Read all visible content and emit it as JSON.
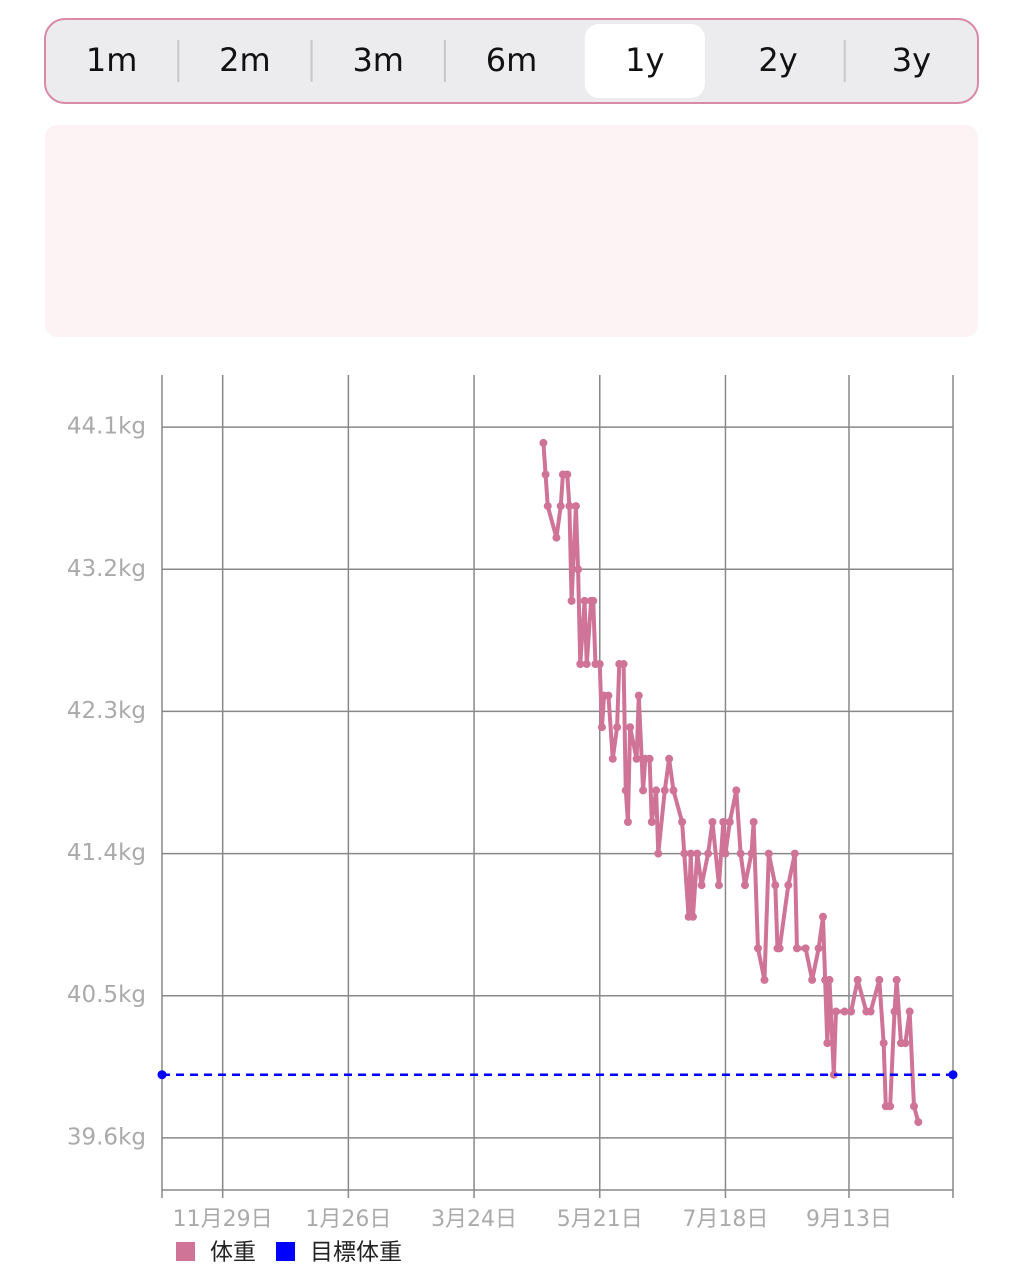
{
  "tabs": {
    "options": [
      "1m",
      "2m",
      "3m",
      "6m",
      "1y",
      "2y",
      "3y"
    ],
    "selected": 4
  },
  "chart_data": {
    "type": "line",
    "xlim": [
      -28,
      337
    ],
    "xticks": [
      {
        "value": 0,
        "label": "11月29日"
      },
      {
        "value": 58,
        "label": "1月26日"
      },
      {
        "value": 116,
        "label": "3月24日"
      },
      {
        "value": 174,
        "label": "5月21日"
      },
      {
        "value": 232,
        "label": "7月18日"
      },
      {
        "value": 289,
        "label": "9月13日"
      }
    ],
    "ylim": [
      39.27,
      44.43
    ],
    "yticks": [
      {
        "value": 39.6,
        "label": "39.6kg"
      },
      {
        "value": 40.5,
        "label": "40.5kg"
      },
      {
        "value": 41.4,
        "label": "41.4kg"
      },
      {
        "value": 42.3,
        "label": "42.3kg"
      },
      {
        "value": 43.2,
        "label": "43.2kg"
      },
      {
        "value": 44.1,
        "label": "44.1kg"
      }
    ],
    "grid": true,
    "legend": "bottom-left",
    "series": [
      {
        "name": "体重",
        "color": "#cf7496",
        "x": [
          148,
          149,
          150,
          154,
          156,
          157,
          159,
          160,
          161,
          163,
          164,
          165,
          167,
          168,
          170,
          171,
          172,
          174,
          175,
          176,
          178,
          180,
          182,
          183,
          185,
          186,
          187,
          188,
          191,
          192,
          194,
          195,
          197,
          198,
          200,
          201,
          204,
          206,
          208,
          212,
          213,
          215,
          216,
          217,
          219,
          221,
          224,
          226,
          229,
          231,
          232,
          234,
          237,
          239,
          241,
          244,
          245,
          247,
          250,
          252,
          255,
          256,
          257,
          261,
          264,
          265,
          269,
          272,
          275,
          277,
          278,
          279,
          280,
          282,
          283,
          287,
          290,
          293,
          297,
          299,
          303,
          305,
          306,
          308,
          310,
          311,
          313,
          315,
          317,
          319,
          321
        ],
        "values": [
          44.0,
          43.8,
          43.6,
          43.4,
          43.6,
          43.8,
          43.8,
          43.6,
          43.0,
          43.6,
          43.2,
          42.6,
          43.0,
          42.6,
          43.0,
          43.0,
          42.6,
          42.6,
          42.2,
          42.4,
          42.4,
          42.0,
          42.2,
          42.6,
          42.6,
          41.8,
          41.6,
          42.2,
          42.0,
          42.4,
          41.8,
          42.0,
          42.0,
          41.6,
          41.8,
          41.4,
          41.8,
          42.0,
          41.8,
          41.6,
          41.4,
          41.0,
          41.4,
          41.0,
          41.4,
          41.2,
          41.4,
          41.6,
          41.2,
          41.6,
          41.4,
          41.6,
          41.8,
          41.4,
          41.2,
          41.4,
          41.6,
          40.8,
          40.6,
          41.4,
          41.2,
          40.8,
          40.8,
          41.2,
          41.4,
          40.8,
          40.8,
          40.6,
          40.8,
          41.0,
          40.6,
          40.2,
          40.6,
          40.0,
          40.4,
          40.4,
          40.4,
          40.6,
          40.4,
          40.4,
          40.6,
          40.2,
          39.8,
          39.8,
          40.4,
          40.6,
          40.2,
          40.2,
          40.4,
          39.8,
          39.7
        ]
      },
      {
        "name": "目標体重",
        "color": "#0000ff",
        "dashed": true,
        "x": [
          -28,
          337
        ],
        "values": [
          40.0,
          40.0
        ]
      }
    ]
  }
}
